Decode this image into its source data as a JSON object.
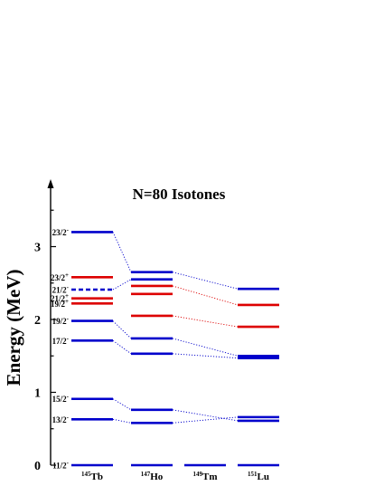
{
  "chart_data": {
    "type": "level-scheme",
    "title": "N=80 Isotones",
    "ylabel": "Energy (MeV)",
    "ylim": [
      0,
      3.6
    ],
    "yticks": [
      0,
      1,
      2,
      3
    ],
    "grid": false,
    "colors": {
      "blue": "#0000cc",
      "red": "#dd0000"
    },
    "columns": [
      {
        "mass": "145",
        "element": "Tb"
      },
      {
        "mass": "147",
        "element": "Ho"
      },
      {
        "mass": "149",
        "element": "Tm"
      },
      {
        "mass": "151",
        "element": "Lu"
      }
    ],
    "levels": [
      {
        "id": "tb-11",
        "col": 0,
        "energy": 0.0,
        "color": "blue",
        "label": "11/2",
        "parity": "-"
      },
      {
        "id": "tb-13",
        "col": 0,
        "energy": 0.63,
        "color": "blue",
        "label": "13/2",
        "parity": "-"
      },
      {
        "id": "tb-15",
        "col": 0,
        "energy": 0.91,
        "color": "blue",
        "label": "15/2",
        "parity": "-"
      },
      {
        "id": "tb-17",
        "col": 0,
        "energy": 1.71,
        "color": "blue",
        "label": "17/2",
        "parity": "-"
      },
      {
        "id": "tb-19m",
        "col": 0,
        "energy": 1.98,
        "color": "blue",
        "label": "19/2",
        "parity": "-"
      },
      {
        "id": "tb-19p",
        "col": 0,
        "energy": 2.22,
        "color": "red",
        "label": "19/2",
        "parity": "+"
      },
      {
        "id": "tb-21p",
        "col": 0,
        "energy": 2.29,
        "color": "red",
        "label": "21/2",
        "parity": "+"
      },
      {
        "id": "tb-21m",
        "col": 0,
        "energy": 2.41,
        "color": "blue",
        "label": "21/2",
        "parity": "-",
        "dashed": true
      },
      {
        "id": "tb-23p",
        "col": 0,
        "energy": 2.58,
        "color": "red",
        "label": "23/2",
        "parity": "+"
      },
      {
        "id": "tb-23m",
        "col": 0,
        "energy": 3.2,
        "color": "blue",
        "label": "23/2",
        "parity": "-"
      },
      {
        "id": "ho-0",
        "col": 1,
        "energy": 0.0,
        "color": "blue"
      },
      {
        "id": "ho-a",
        "col": 1,
        "energy": 0.58,
        "color": "blue"
      },
      {
        "id": "ho-b",
        "col": 1,
        "energy": 0.76,
        "color": "blue"
      },
      {
        "id": "ho-c",
        "col": 1,
        "energy": 1.53,
        "color": "blue"
      },
      {
        "id": "ho-d",
        "col": 1,
        "energy": 1.74,
        "color": "blue"
      },
      {
        "id": "ho-e",
        "col": 1,
        "energy": 2.05,
        "color": "red"
      },
      {
        "id": "ho-f",
        "col": 1,
        "energy": 2.35,
        "color": "red"
      },
      {
        "id": "ho-g",
        "col": 1,
        "energy": 2.46,
        "color": "red"
      },
      {
        "id": "ho-h",
        "col": 1,
        "energy": 2.55,
        "color": "blue"
      },
      {
        "id": "ho-i",
        "col": 1,
        "energy": 2.65,
        "color": "blue"
      },
      {
        "id": "tm-0",
        "col": 2,
        "energy": 0.0,
        "color": "blue"
      },
      {
        "id": "lu-0",
        "col": 3,
        "energy": 0.0,
        "color": "blue"
      },
      {
        "id": "lu-a",
        "col": 3,
        "energy": 0.61,
        "color": "blue"
      },
      {
        "id": "lu-b",
        "col": 3,
        "energy": 0.66,
        "color": "blue"
      },
      {
        "id": "lu-c",
        "col": 3,
        "energy": 1.47,
        "color": "blue"
      },
      {
        "id": "lu-d",
        "col": 3,
        "energy": 1.5,
        "color": "blue"
      },
      {
        "id": "lu-e",
        "col": 3,
        "energy": 1.9,
        "color": "red"
      },
      {
        "id": "lu-f",
        "col": 3,
        "energy": 2.2,
        "color": "red"
      },
      {
        "id": "lu-g",
        "col": 3,
        "energy": 2.42,
        "color": "blue"
      }
    ],
    "connectors": [
      {
        "from": "tb-13",
        "to": "ho-a",
        "color": "blue"
      },
      {
        "from": "tb-15",
        "to": "ho-b",
        "color": "blue"
      },
      {
        "from": "tb-17",
        "to": "ho-c",
        "color": "blue"
      },
      {
        "from": "tb-19m",
        "to": "ho-d",
        "color": "blue"
      },
      {
        "from": "tb-21m",
        "to": "ho-h",
        "color": "blue"
      },
      {
        "from": "tb-23m",
        "to": "ho-i",
        "color": "blue"
      },
      {
        "from": "ho-a",
        "to": "lu-b",
        "color": "blue"
      },
      {
        "from": "ho-b",
        "to": "lu-a",
        "color": "blue"
      },
      {
        "from": "ho-c",
        "to": "lu-c",
        "color": "blue"
      },
      {
        "from": "ho-d",
        "to": "lu-d",
        "color": "blue"
      },
      {
        "from": "ho-i",
        "to": "lu-g",
        "color": "blue"
      },
      {
        "from": "ho-e",
        "to": "lu-e",
        "color": "red"
      },
      {
        "from": "ho-g",
        "to": "lu-f",
        "color": "red"
      }
    ]
  }
}
